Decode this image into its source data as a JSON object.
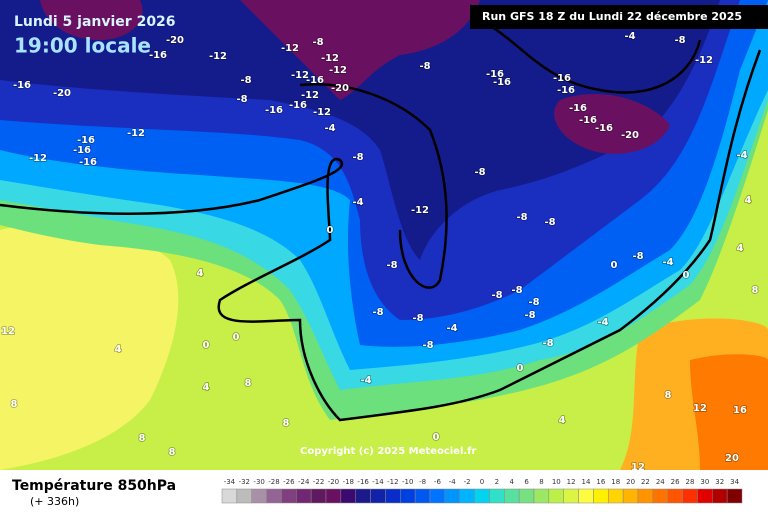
{
  "header": {
    "date": "Lundi 5 janvier 2026",
    "time": "19:00 locale",
    "run": "Run GFS 18 Z du Lundi 22 décembre 2025"
  },
  "copyright": "Copyright (c) 2025 Meteociel.fr",
  "legend": {
    "title": "Température 850hPa",
    "lead": "(+ 336h)",
    "scale": [
      -34,
      -32,
      -30,
      -28,
      -26,
      -24,
      -22,
      -20,
      -18,
      -16,
      -14,
      -12,
      -10,
      -8,
      -6,
      -4,
      -2,
      0,
      2,
      4,
      6,
      8,
      10,
      12,
      14,
      16,
      18,
      20,
      22,
      24,
      26,
      28,
      30,
      32,
      34
    ],
    "colors": [
      "#d8d8d8",
      "#bcbcbc",
      "#a890a8",
      "#946494",
      "#804080",
      "#702870",
      "#601860",
      "#6a1060",
      "#3a0a70",
      "#1a1a8a",
      "#1222a8",
      "#0a2cc8",
      "#0040e0",
      "#0058f0",
      "#0074ff",
      "#0094ff",
      "#00b4ff",
      "#00d4f0",
      "#30e0c8",
      "#58e0a0",
      "#78e080",
      "#9ce864",
      "#bcf048",
      "#dcf444",
      "#fcfc40",
      "#fff000",
      "#ffd400",
      "#ffb400",
      "#ff9400",
      "#ff7400",
      "#ff5400",
      "#ff3000",
      "#e00000",
      "#b00000",
      "#800000"
    ]
  },
  "map": {
    "labels": [
      -20,
      -16,
      -12,
      -16,
      -20,
      -8,
      -8,
      -12,
      -8,
      -12,
      -16,
      -12,
      -12,
      -20,
      -16,
      -12,
      -16,
      -12,
      -4,
      -12,
      -16,
      -16,
      -16,
      -12,
      -8,
      -16,
      -16,
      -16,
      -16,
      -16,
      -16,
      -16,
      -20,
      -4,
      -8,
      -12,
      -8,
      -8,
      -4,
      -12,
      -8,
      -8,
      0,
      -8,
      4,
      0,
      -8,
      -4,
      0,
      -8,
      -8,
      -8,
      -8,
      -8,
      -4,
      -8,
      -4,
      -8,
      -8,
      0,
      -4,
      0,
      4,
      8,
      12,
      16,
      8,
      8,
      4,
      4,
      0,
      0,
      8,
      12,
      8,
      8,
      12,
      20,
      4,
      8,
      4,
      -4,
      12
    ]
  }
}
